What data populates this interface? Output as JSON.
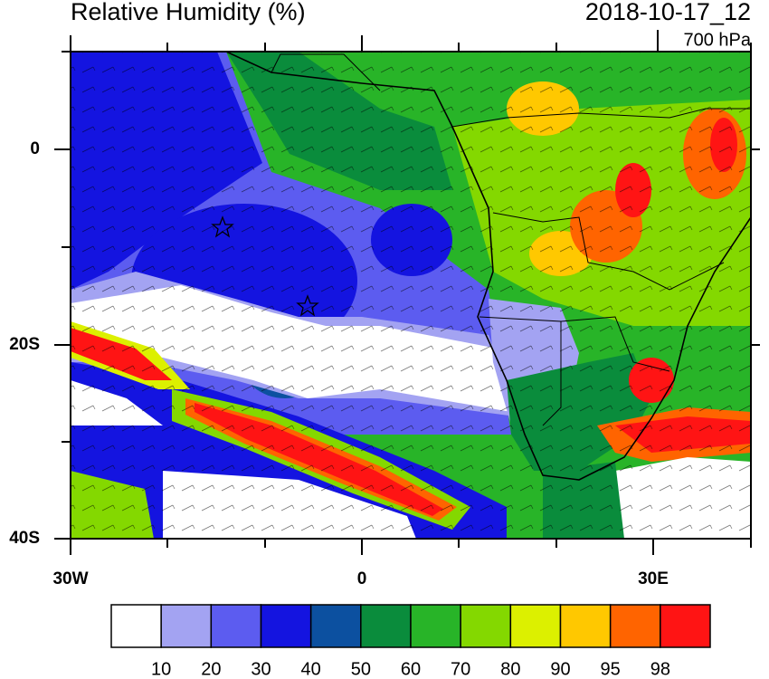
{
  "title": "Relative Humidity (%)",
  "valid_time": "2018-10-17_12",
  "level": "700 hPa",
  "lat_labels": [
    "0",
    "20S",
    "40S"
  ],
  "lon_labels": [
    "30W",
    "0",
    "30E"
  ],
  "colorbar": {
    "levels": [
      10,
      20,
      30,
      40,
      50,
      60,
      70,
      80,
      90,
      95,
      98
    ],
    "colors": [
      "#ffffff",
      "#a3a3f2",
      "#5c5cf0",
      "#1414e0",
      "#0c50a0",
      "#0a8c3c",
      "#28b428",
      "#84d800",
      "#dcf000",
      "#ffc800",
      "#ff6400",
      "#ff1414"
    ]
  }
}
